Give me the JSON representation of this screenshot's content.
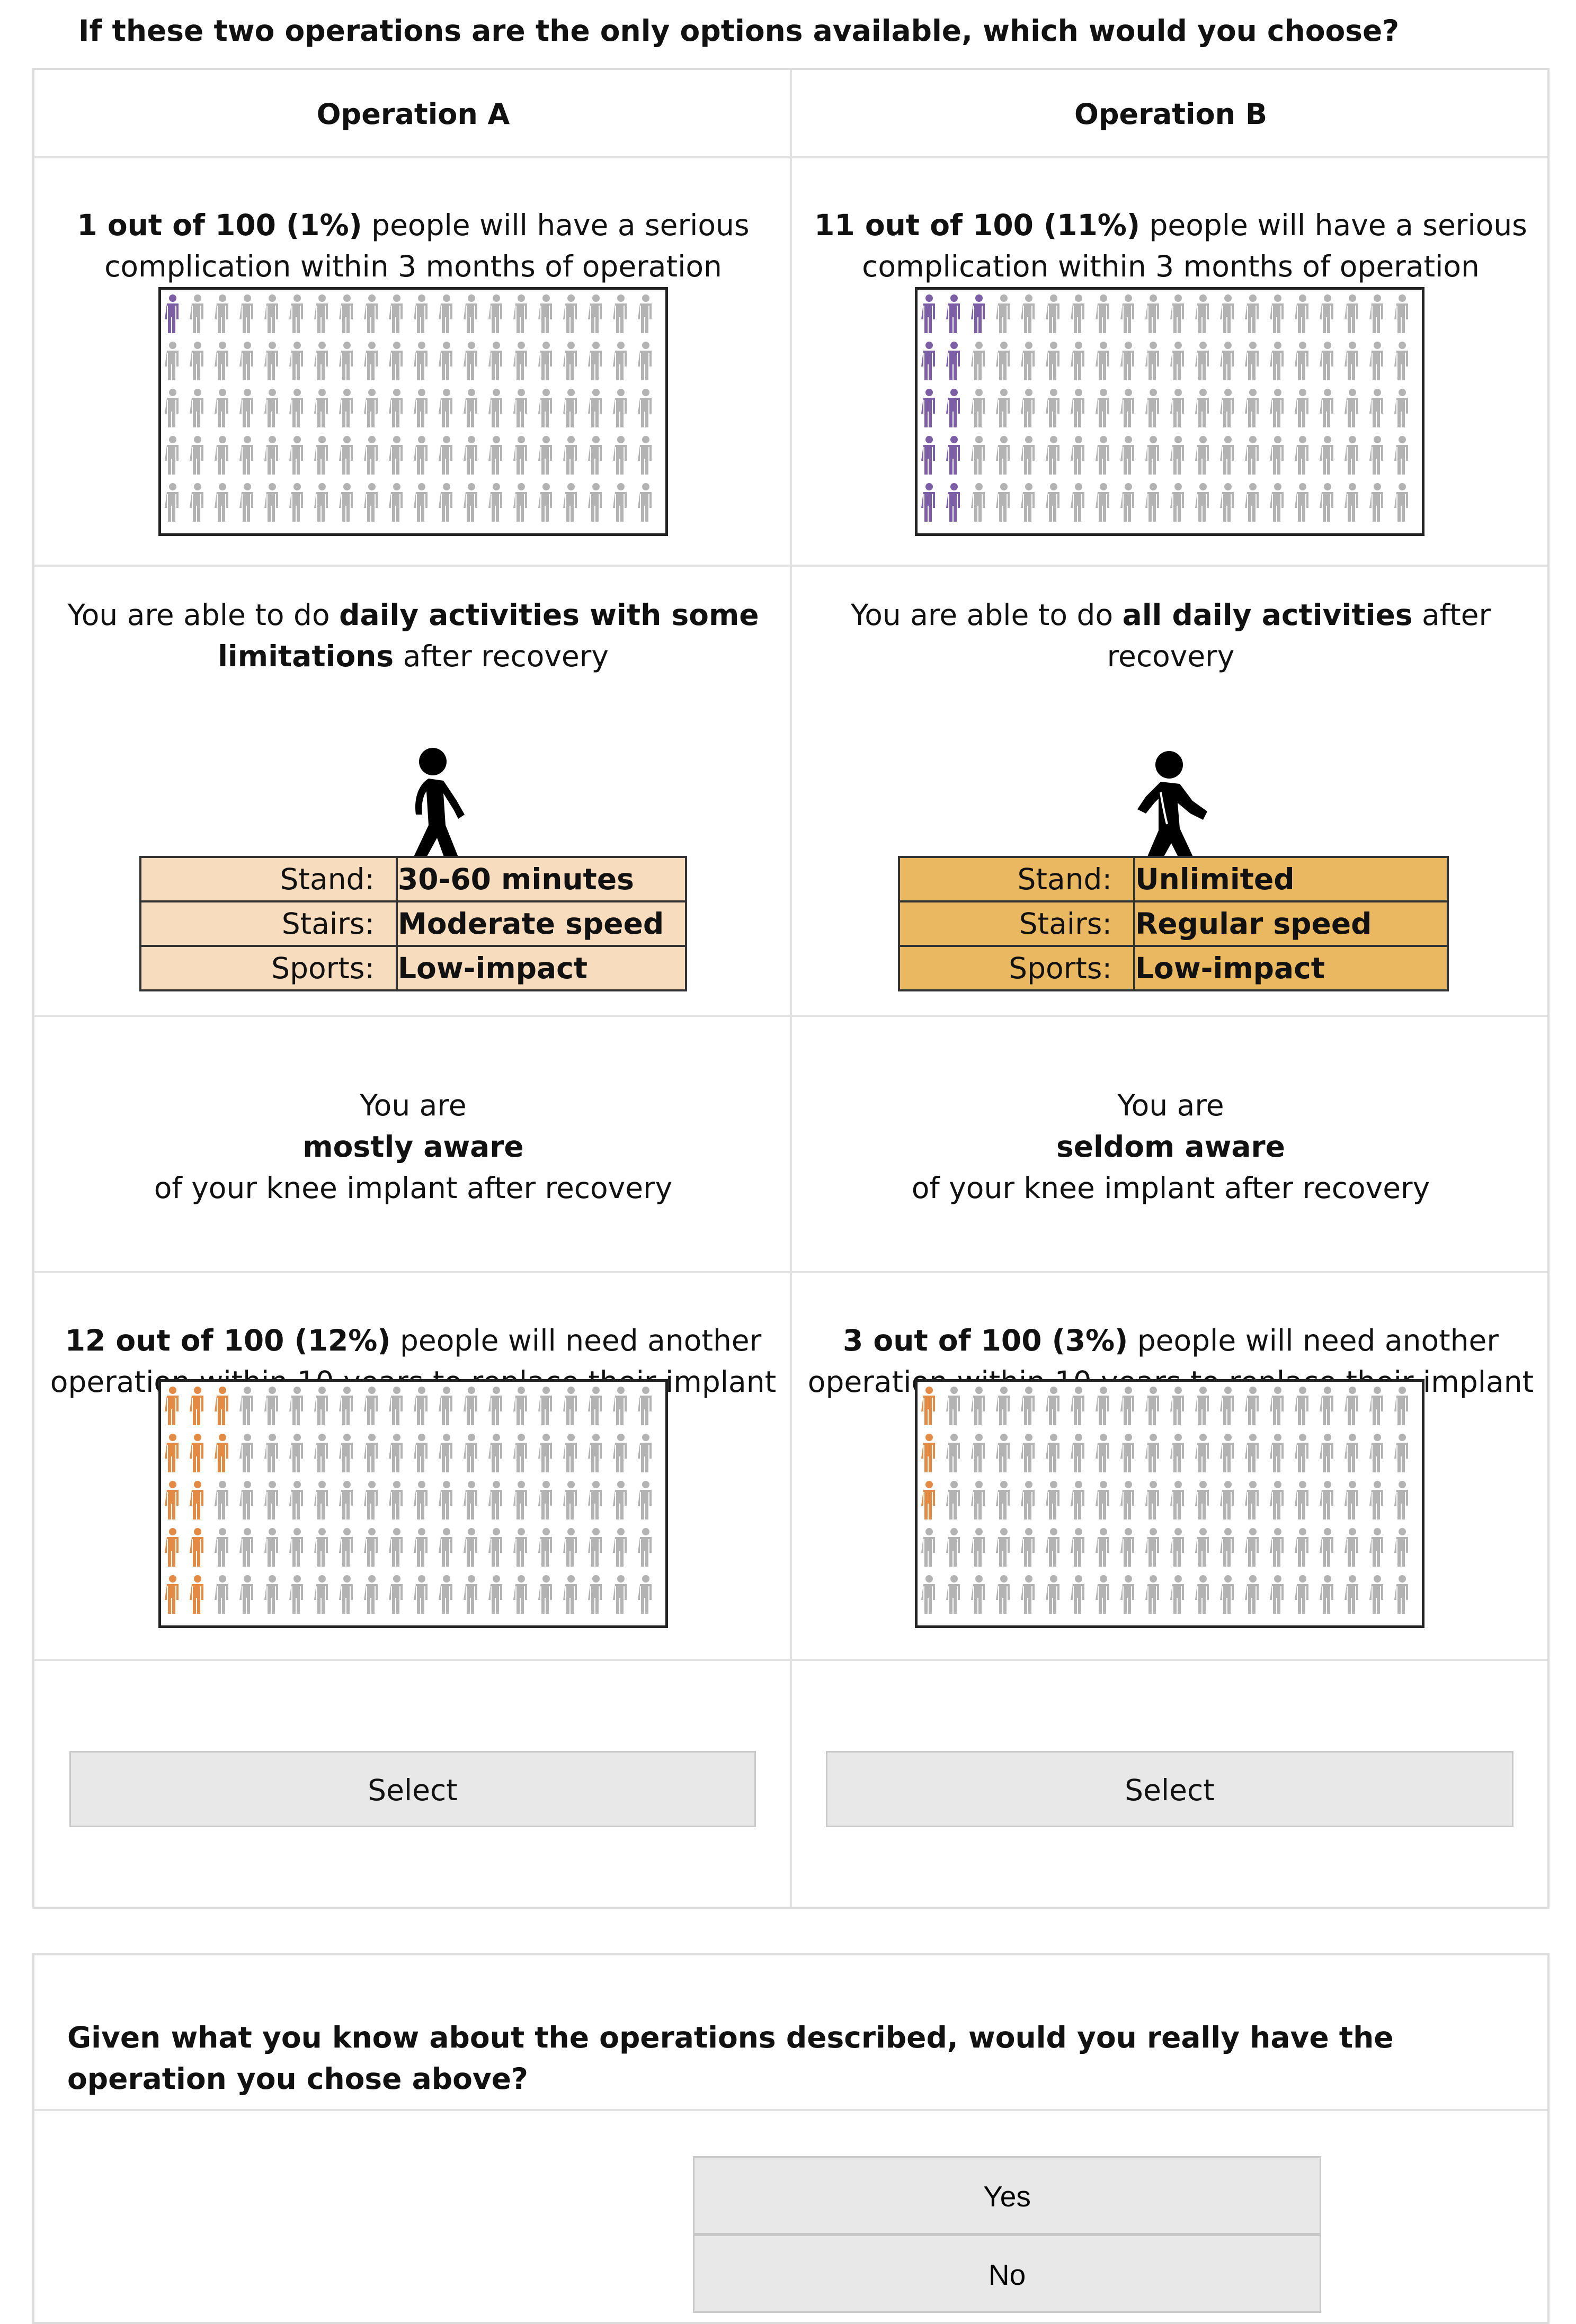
{
  "question": "If these two operations are the only options available, which would you choose?",
  "colors": {
    "icon_gray": "#b3b3b3",
    "complication_purple": "#7c5ea7",
    "revision_orange": "#e38a45",
    "spec_light": "#f7dcbd",
    "spec_dark": "#e9b860"
  },
  "operation_a": {
    "title": "Operation A",
    "complication": {
      "bold": "1 out of 100 (1%)",
      "line1_rest": " people will have a serious",
      "line2": "complication within 3 months of operation",
      "affected": 1
    },
    "function": {
      "pre": "You are able to do ",
      "bold1": "daily activities with some",
      "bold2": "limitations",
      "post": " after recovery",
      "walker_icon": "walking-person-icon",
      "stand_label": "Stand:",
      "stand_value": "30-60 minutes",
      "stairs_label": "Stairs:",
      "stairs_value": "Moderate speed",
      "sports_label": "Sports:",
      "sports_value": "Low-impact"
    },
    "awareness": {
      "line1": "You are",
      "bold": "mostly aware",
      "line3": "of your knee implant after recovery"
    },
    "revision": {
      "bold": "12 out of 100 (12%)",
      "line1_rest": " people will need another",
      "line2": "operation within 10 years to replace their implant",
      "affected": 12
    },
    "select_label": "Select"
  },
  "operation_b": {
    "title": "Operation B",
    "complication": {
      "bold": "11 out of 100 (11%)",
      "line1_rest": " people will have a serious",
      "line2": "complication within 3 months of operation",
      "affected": 11
    },
    "function": {
      "pre": "You are able to do ",
      "bold1": "all daily activities",
      "post1": " after",
      "line2": "recovery",
      "walker_icon": "walking-person-icon",
      "stand_label": "Stand:",
      "stand_value": "Unlimited",
      "stairs_label": "Stairs:",
      "stairs_value": "Regular speed",
      "sports_label": "Sports:",
      "sports_value": "Low-impact"
    },
    "awareness": {
      "line1": "You are",
      "bold": "seldom aware",
      "line3": "of your knee implant after recovery"
    },
    "revision": {
      "bold": "3 out of 100 (3%)",
      "line1_rest": " people will need another",
      "line2": "operation within 10 years to replace their implant",
      "affected": 3
    },
    "select_label": "Select"
  },
  "followup": {
    "question": "Given what you know about the operations described, would you really have the operation you chose above?",
    "yes_label": "Yes",
    "no_label": "No"
  }
}
